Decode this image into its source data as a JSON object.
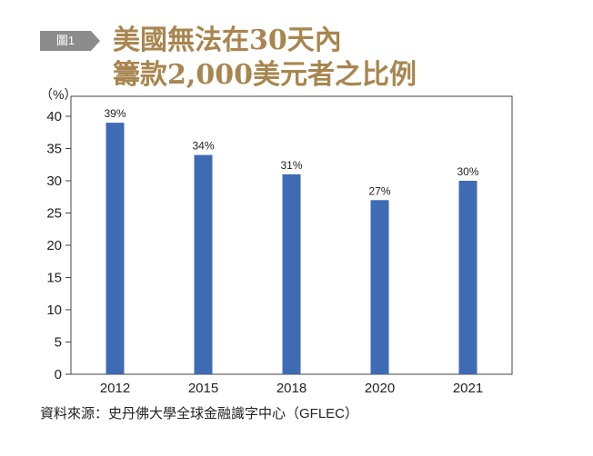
{
  "figure_tag": "圖1",
  "title_lines": [
    "美國無法在30天內",
    "籌款2,000美元者之比例"
  ],
  "unit_label": "（%）",
  "source": "資料來源：史丹佛大學全球金融識字中心（GFLEC）",
  "colors": {
    "bar": "#3e6bb4",
    "title": "#a8864f",
    "tag_bg": "#8c8c8c"
  },
  "chart_data": {
    "type": "bar",
    "title": "美國無法在30天內籌款2,000美元者之比例",
    "xlabel": "",
    "ylabel": "（%）",
    "categories": [
      "2012",
      "2015",
      "2018",
      "2020",
      "2021"
    ],
    "values": [
      39,
      34,
      31,
      27,
      30
    ],
    "data_labels": [
      "39%",
      "34%",
      "31%",
      "27%",
      "30%"
    ],
    "ylim": [
      0,
      40
    ],
    "yticks": [
      0,
      5,
      10,
      15,
      20,
      25,
      30,
      35,
      40
    ],
    "grid": false,
    "legend": "none"
  }
}
